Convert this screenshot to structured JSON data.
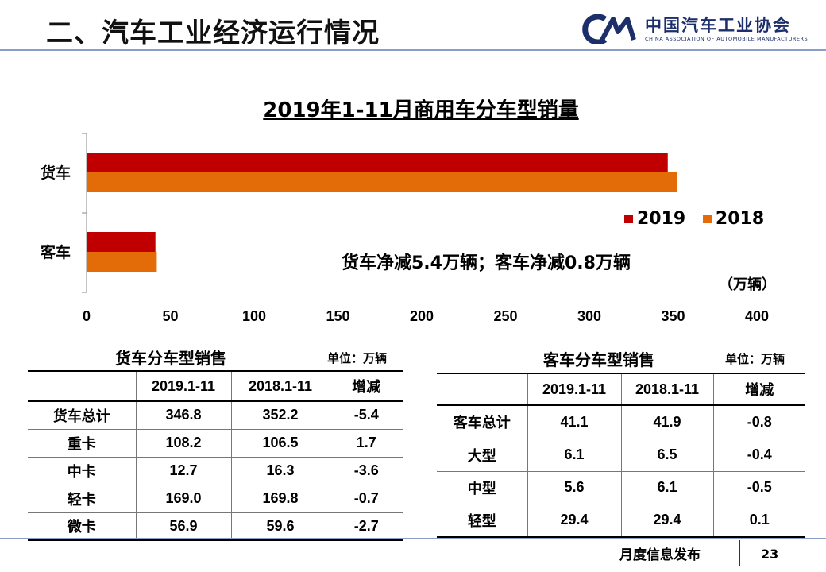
{
  "header": {
    "title": "二、汽车工业经济运行情况",
    "logo_name": "中国汽车工业协会",
    "logo_sub": "CHINA ASSOCIATION OF AUTOMOBILE MANUFACTURERS"
  },
  "colors": {
    "c2019": "#c00000",
    "c2018": "#e36c09",
    "brand": "#1c2f6b"
  },
  "chart_data": {
    "type": "bar",
    "orientation": "horizontal",
    "title": "2019年1-11月商用车分车型销量",
    "categories": [
      "货车",
      "客车"
    ],
    "series": [
      {
        "name": "2019",
        "values": [
          346.8,
          41.1
        ]
      },
      {
        "name": "2018",
        "values": [
          352.2,
          41.9
        ]
      }
    ],
    "xlim": [
      0,
      400
    ],
    "ticks": [
      "0",
      "50",
      "100",
      "150",
      "200",
      "250",
      "300",
      "350",
      "400"
    ],
    "unit_label": "（万辆）",
    "annotation": "货车净减5.4万辆；客车净减0.8万辆",
    "legend": [
      "2019",
      "2018"
    ]
  },
  "truck_table": {
    "title": "货车分车型销售",
    "unit": "单位：万辆",
    "headers": [
      "",
      "2019.1-11",
      "2018.1-11",
      "增减"
    ],
    "rows": [
      [
        "货车总计",
        "346.8",
        "352.2",
        "-5.4"
      ],
      [
        "重卡",
        "108.2",
        "106.5",
        "1.7"
      ],
      [
        "中卡",
        "12.7",
        "16.3",
        "-3.6"
      ],
      [
        "轻卡",
        "169.0",
        "169.8",
        "-0.7"
      ],
      [
        "微卡",
        "56.9",
        "59.6",
        "-2.7"
      ]
    ]
  },
  "bus_table": {
    "title": "客车分车型销售",
    "unit": "单位：万辆",
    "headers": [
      "",
      "2019.1-11",
      "2018.1-11",
      "增减"
    ],
    "rows": [
      [
        "客车总计",
        "41.1",
        "41.9",
        "-0.8"
      ],
      [
        "大型",
        "6.1",
        "6.5",
        "-0.4"
      ],
      [
        "中型",
        "5.6",
        "6.1",
        "-0.5"
      ],
      [
        "轻型",
        "29.4",
        "29.4",
        "0.1"
      ]
    ]
  },
  "footer": {
    "text": "月度信息发布",
    "page": "23"
  }
}
